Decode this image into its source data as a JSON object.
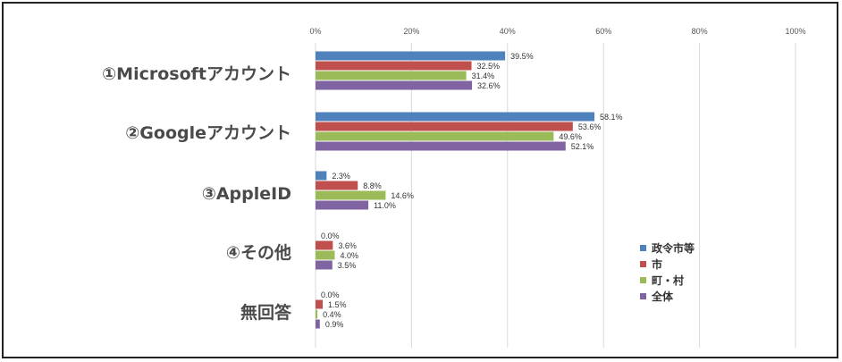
{
  "chart_data": {
    "type": "bar",
    "orientation": "horizontal",
    "categories": [
      "①Microsoftアカウント",
      "②Googleアカウント",
      "③AppleID",
      "④その他",
      "無回答"
    ],
    "series": [
      {
        "name": "政令市等",
        "color": "#4f81bd",
        "values": [
          39.5,
          58.1,
          2.3,
          0.0,
          0.0
        ]
      },
      {
        "name": "市",
        "color": "#c0504d",
        "values": [
          32.5,
          53.6,
          8.8,
          3.6,
          1.5
        ]
      },
      {
        "name": "町・村",
        "color": "#9bbb59",
        "values": [
          31.4,
          49.6,
          14.6,
          4.0,
          0.4
        ]
      },
      {
        "name": "全体",
        "color": "#8064a2",
        "values": [
          32.6,
          52.1,
          11.0,
          3.5,
          0.9
        ]
      }
    ],
    "xlim": [
      0,
      100
    ],
    "xticks": [
      "0%",
      "20%",
      "40%",
      "60%",
      "80%",
      "100%"
    ],
    "value_suffix": "%",
    "grid": true,
    "legend_position": "right"
  }
}
